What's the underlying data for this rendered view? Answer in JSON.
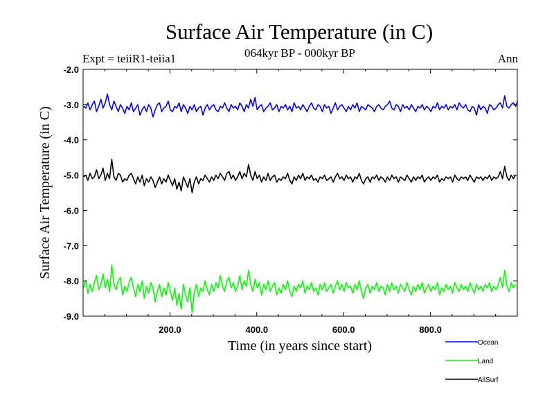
{
  "chart_data": {
    "type": "line",
    "title": "Surface Air Temperature (in C)",
    "subtitle": "064kyr BP - 000kyr BP",
    "expt_label": "Expt = teiiR1-teiia1",
    "season_label": "Ann",
    "xlabel": "Time (in years since start)",
    "ylabel": "Surface Air Temperature (in C)",
    "xlim": [
      0,
      1000
    ],
    "ylim": [
      -9.0,
      -2.0
    ],
    "xticks": [
      200,
      400,
      600,
      800
    ],
    "xtick_labels": [
      "200.0",
      "400.0",
      "600.0",
      "800.0"
    ],
    "yticks": [
      -2,
      -3,
      -4,
      -5,
      -6,
      -7,
      -8,
      -9
    ],
    "ytick_labels": [
      "-2.0",
      "-3.0",
      "-4.0",
      "-5.0",
      "-6.0",
      "-7.0",
      "-8.0",
      "-9.0"
    ],
    "grid": false,
    "legend_position": "bottom-right, below plot",
    "series": [
      {
        "name": "Ocean",
        "color": "#0000ff",
        "x_start": 1,
        "x_step": 5,
        "values": [
          -3.05,
          -3.1,
          -2.95,
          -3.15,
          -3.0,
          -2.9,
          -3.2,
          -3.05,
          -2.85,
          -3.1,
          -2.95,
          -2.7,
          -3.0,
          -3.15,
          -2.9,
          -3.05,
          -3.2,
          -3.0,
          -3.1,
          -3.25,
          -3.05,
          -3.15,
          -2.95,
          -3.2,
          -3.1,
          -3.0,
          -3.3,
          -3.15,
          -3.05,
          -3.2,
          -3.0,
          -3.1,
          -3.35,
          -3.15,
          -3.0,
          -2.95,
          -3.2,
          -3.1,
          -3.05,
          -2.9,
          -3.15,
          -3.2,
          -3.05,
          -3.1,
          -2.95,
          -3.2,
          -3.0,
          -3.1,
          -3.25,
          -3.05,
          -3.15,
          -3.0,
          -3.2,
          -3.1,
          -3.05,
          -3.3,
          -3.1,
          -3.0,
          -3.15,
          -3.05,
          -3.0,
          -3.15,
          -3.2,
          -3.05,
          -3.1,
          -2.95,
          -3.1,
          -3.2,
          -3.0,
          -3.1,
          -3.05,
          -3.15,
          -2.95,
          -3.05,
          -3.2,
          -3.0,
          -3.1,
          -2.85,
          -3.05,
          -2.8,
          -3.15,
          -3.05,
          -3.0,
          -3.2,
          -3.1,
          -3.05,
          -2.95,
          -3.15,
          -3.1,
          -3.0,
          -3.2,
          -3.05,
          -3.1,
          -3.0,
          -3.15,
          -3.05,
          -3.2,
          -2.95,
          -3.1,
          -3.05,
          -3.15,
          -3.0,
          -3.1,
          -3.2,
          -3.05,
          -2.95,
          -3.1,
          -3.15,
          -3.0,
          -3.05,
          -3.2,
          -3.0,
          -3.1,
          -3.05,
          -3.25,
          -3.1,
          -2.95,
          -3.15,
          -3.05,
          -3.0,
          -3.1,
          -3.2,
          -3.05,
          -3.15,
          -3.0,
          -3.1,
          -2.95,
          -3.2,
          -3.05,
          -3.1,
          -3.15,
          -3.0,
          -3.05,
          -3.1,
          -3.2,
          -3.05,
          -3.0,
          -3.1,
          -3.15,
          -3.05,
          -3.0,
          -2.9,
          -3.1,
          -3.15,
          -3.0,
          -3.05,
          -3.2,
          -3.0,
          -3.1,
          -3.05,
          -3.15,
          -3.0,
          -3.1,
          -3.2,
          -3.05,
          -3.1,
          -3.0,
          -3.15,
          -3.05,
          -3.1,
          -3.2,
          -3.05,
          -3.1,
          -2.95,
          -3.15,
          -3.05,
          -3.1,
          -3.0,
          -3.15,
          -3.05,
          -3.1,
          -3.0,
          -3.15,
          -2.95,
          -3.05,
          -3.1,
          -3.0,
          -3.15,
          -3.2,
          -3.05,
          -3.1,
          -3.3,
          -3.0,
          -3.15,
          -3.05,
          -3.1,
          -3.25,
          -3.0,
          -3.05,
          -3.15,
          -3.1,
          -3.0,
          -2.95,
          -3.1,
          -2.75,
          -3.05,
          -3.1,
          -3.0,
          -2.95,
          -3.05,
          -2.9
        ]
      },
      {
        "name": "Land",
        "color": "#00ff00",
        "x_start": 1,
        "x_step": 5,
        "values": [
          -8.2,
          -8.0,
          -8.35,
          -8.1,
          -8.3,
          -8.05,
          -7.85,
          -8.25,
          -8.1,
          -7.8,
          -8.2,
          -7.95,
          -8.3,
          -7.55,
          -8.1,
          -8.25,
          -8.0,
          -7.9,
          -8.4,
          -8.15,
          -8.3,
          -8.05,
          -7.9,
          -8.2,
          -8.45,
          -8.1,
          -8.3,
          -8.0,
          -8.5,
          -8.15,
          -8.35,
          -8.05,
          -8.2,
          -8.6,
          -8.3,
          -8.1,
          -8.45,
          -8.2,
          -8.4,
          -8.05,
          -8.3,
          -8.55,
          -8.2,
          -8.7,
          -8.35,
          -8.8,
          -8.1,
          -8.4,
          -8.6,
          -8.2,
          -8.9,
          -8.35,
          -8.1,
          -8.45,
          -8.2,
          -8.3,
          -8.0,
          -8.25,
          -8.4,
          -8.1,
          -8.3,
          -8.05,
          -8.2,
          -7.85,
          -8.15,
          -8.3,
          -8.0,
          -7.9,
          -8.2,
          -8.05,
          -8.3,
          -8.15,
          -7.85,
          -8.25,
          -8.0,
          -8.15,
          -7.7,
          -8.1,
          -8.3,
          -7.95,
          -8.2,
          -8.05,
          -8.4,
          -8.1,
          -8.25,
          -8.0,
          -8.3,
          -8.15,
          -8.05,
          -8.4,
          -8.2,
          -8.35,
          -8.1,
          -8.25,
          -8.0,
          -8.3,
          -8.45,
          -8.15,
          -8.3,
          -8.1,
          -8.2,
          -8.0,
          -8.35,
          -8.15,
          -8.25,
          -8.05,
          -8.3,
          -8.2,
          -8.4,
          -8.1,
          -8.25,
          -8.05,
          -8.3,
          -8.2,
          -8.1,
          -8.35,
          -8.15,
          -8.0,
          -8.25,
          -8.1,
          -8.3,
          -8.05,
          -8.2,
          -8.15,
          -8.35,
          -8.1,
          -8.25,
          -8.0,
          -8.3,
          -8.5,
          -8.2,
          -8.1,
          -8.35,
          -8.15,
          -8.25,
          -8.05,
          -8.3,
          -8.15,
          -8.2,
          -8.4,
          -8.1,
          -8.3,
          -8.05,
          -8.25,
          -8.15,
          -8.35,
          -8.1,
          -8.2,
          -8.3,
          -8.05,
          -8.25,
          -8.4,
          -8.15,
          -8.3,
          -8.1,
          -8.25,
          -8.05,
          -8.35,
          -8.2,
          -8.1,
          -8.3,
          -8.15,
          -8.25,
          -8.05,
          -8.4,
          -8.2,
          -8.3,
          -8.1,
          -8.25,
          -8.15,
          -8.35,
          -8.05,
          -8.2,
          -8.3,
          -8.1,
          -8.25,
          -8.15,
          -8.3,
          -8.05,
          -8.2,
          -8.35,
          -8.1,
          -8.25,
          -8.15,
          -8.3,
          -8.1,
          -8.2,
          -8.05,
          -8.3,
          -8.15,
          -8.25,
          -8.1,
          -7.9,
          -8.2,
          -7.7,
          -8.15,
          -8.3,
          -8.05,
          -8.2,
          -8.1
        ]
      },
      {
        "name": "AllSurf",
        "color": "#000000",
        "x_start": 1,
        "x_step": 5,
        "values": [
          -5.05,
          -5.0,
          -5.15,
          -4.95,
          -5.1,
          -5.05,
          -4.85,
          -5.1,
          -5.0,
          -4.8,
          -5.15,
          -4.95,
          -5.1,
          -4.55,
          -5.05,
          -5.15,
          -4.95,
          -5.0,
          -5.2,
          -5.1,
          -5.15,
          -5.0,
          -4.95,
          -5.1,
          -5.25,
          -5.05,
          -5.2,
          -5.0,
          -5.3,
          -5.1,
          -5.2,
          -5.05,
          -5.15,
          -5.35,
          -5.2,
          -5.05,
          -5.25,
          -5.1,
          -5.2,
          -5.0,
          -5.15,
          -5.3,
          -5.1,
          -5.4,
          -5.2,
          -5.45,
          -5.05,
          -5.2,
          -5.35,
          -5.1,
          -5.5,
          -5.2,
          -5.05,
          -5.25,
          -5.1,
          -5.15,
          -5.0,
          -5.1,
          -5.2,
          -5.05,
          -5.15,
          -5.0,
          -5.1,
          -4.95,
          -5.05,
          -5.15,
          -4.95,
          -4.9,
          -5.1,
          -5.0,
          -5.15,
          -5.05,
          -4.9,
          -5.1,
          -4.95,
          -5.05,
          -4.7,
          -5.0,
          -5.15,
          -4.9,
          -5.1,
          -5.0,
          -5.2,
          -5.05,
          -5.15,
          -4.95,
          -5.15,
          -5.05,
          -5.0,
          -5.2,
          -5.1,
          -5.15,
          -5.05,
          -5.1,
          -4.95,
          -5.15,
          -5.25,
          -5.05,
          -5.15,
          -5.0,
          -5.1,
          -4.95,
          -5.15,
          -5.05,
          -5.1,
          -5.0,
          -5.15,
          -5.1,
          -5.2,
          -5.05,
          -5.1,
          -5.0,
          -5.15,
          -5.1,
          -5.05,
          -5.2,
          -5.05,
          -4.95,
          -5.1,
          -5.05,
          -5.15,
          -5.0,
          -5.1,
          -5.05,
          -5.2,
          -5.05,
          -5.1,
          -4.95,
          -5.15,
          -5.25,
          -5.1,
          -5.05,
          -5.2,
          -5.05,
          -5.1,
          -5.0,
          -5.15,
          -5.05,
          -5.1,
          -5.2,
          -5.05,
          -5.15,
          -5.0,
          -5.1,
          -5.05,
          -5.2,
          -5.05,
          -5.1,
          -5.15,
          -5.0,
          -5.1,
          -5.2,
          -5.05,
          -5.15,
          -5.05,
          -5.1,
          -5.0,
          -5.2,
          -5.1,
          -5.05,
          -5.15,
          -5.05,
          -5.1,
          -5.0,
          -5.2,
          -5.1,
          -5.15,
          -5.05,
          -5.1,
          -5.05,
          -5.2,
          -5.0,
          -5.1,
          -5.15,
          -5.05,
          -5.1,
          -5.05,
          -5.15,
          -5.0,
          -5.1,
          -5.2,
          -5.05,
          -5.1,
          -5.05,
          -5.15,
          -5.05,
          -5.1,
          -5.0,
          -5.15,
          -5.05,
          -5.1,
          -5.05,
          -4.9,
          -5.1,
          -4.75,
          -5.05,
          -5.15,
          -5.0,
          -5.1,
          -5.0
        ]
      }
    ]
  }
}
